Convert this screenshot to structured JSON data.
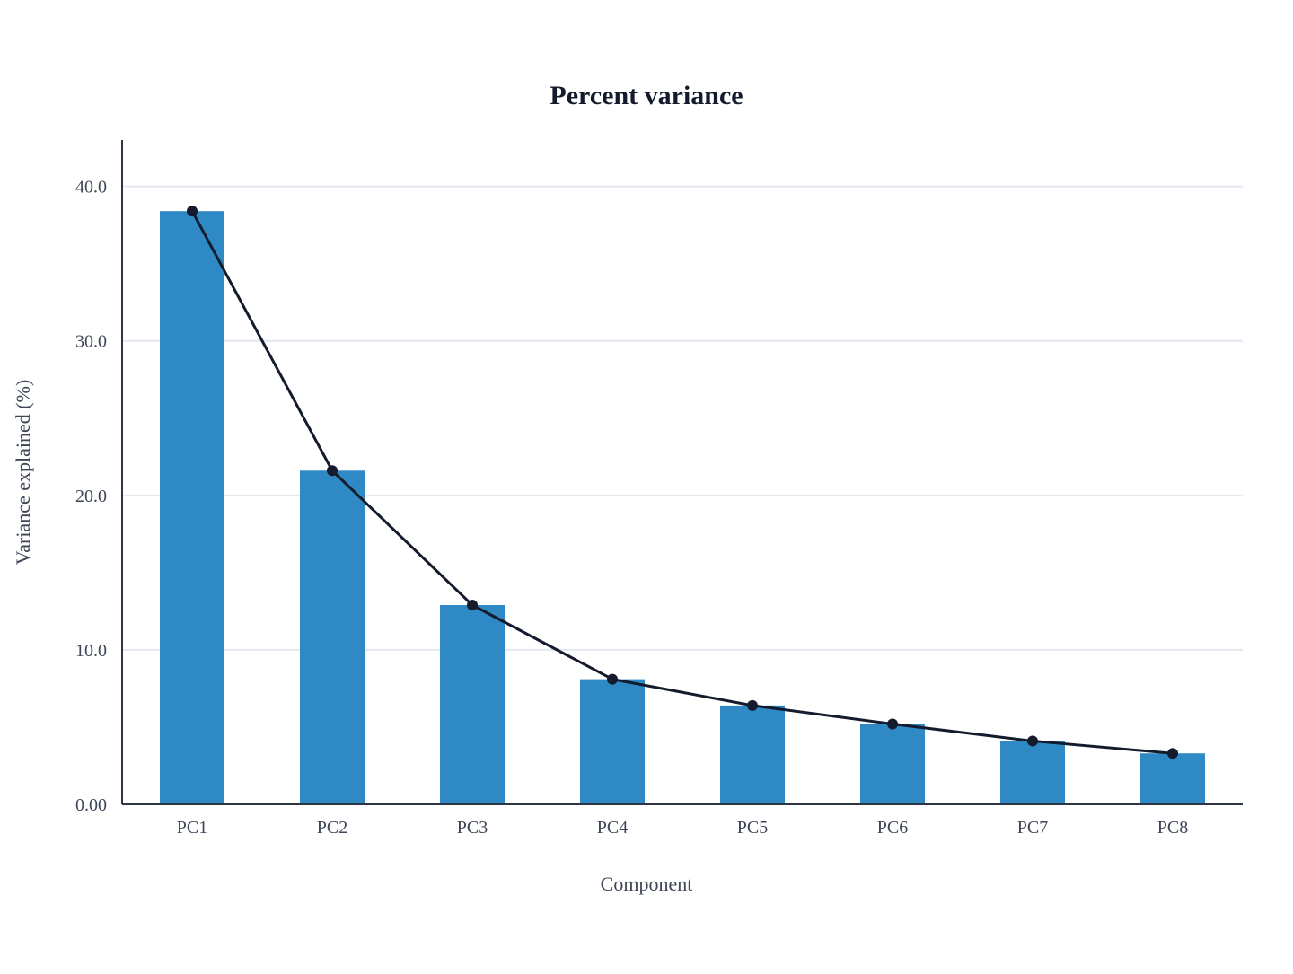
{
  "chart_data": {
    "type": "bar",
    "title": "Percent variance",
    "xlabel": "Component",
    "ylabel": "Variance explained (%)",
    "categories": [
      "PC1",
      "PC2",
      "PC3",
      "PC4",
      "PC5",
      "PC6",
      "PC7",
      "PC8"
    ],
    "values": [
      38.4,
      21.6,
      12.9,
      8.1,
      6.4,
      5.2,
      4.1,
      3.3
    ],
    "ylim": [
      0,
      43
    ],
    "yticks": [
      0,
      10,
      20,
      30,
      40
    ],
    "ytick_labels": [
      "0.00",
      "10.0",
      "20.0",
      "30.0",
      "40.0"
    ],
    "overlay_line": true,
    "grid": true,
    "colors": {
      "bar": "#2e89c5",
      "line": "#141b2d",
      "marker": "#141b2d",
      "grid": "#e3e8f0",
      "axis": "#2e3646"
    }
  }
}
